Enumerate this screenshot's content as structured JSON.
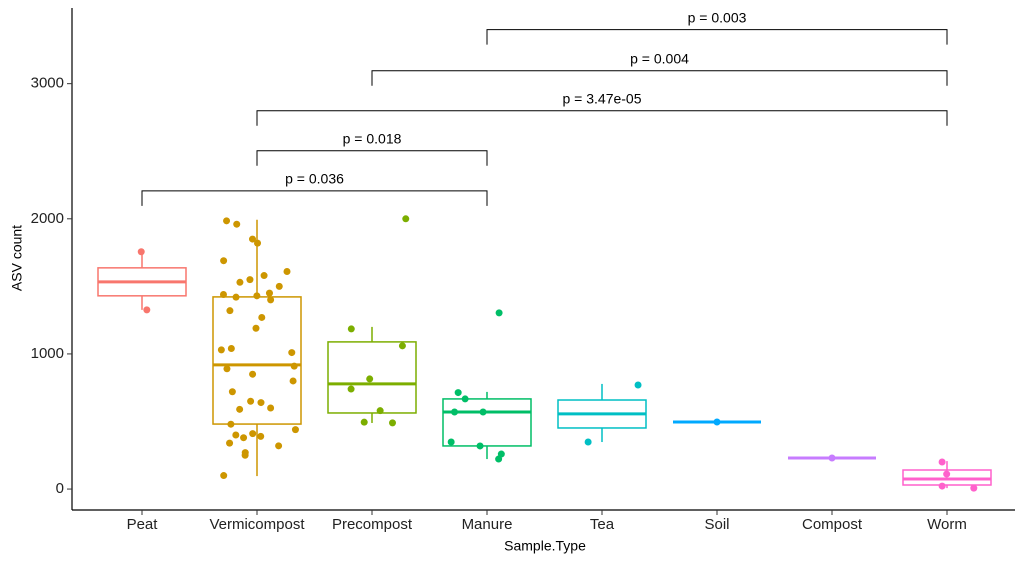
{
  "chart_data": {
    "type": "box",
    "x_label": "Sample.Type",
    "y_label": "ASV count",
    "categories": [
      "Peat",
      "Vermicompost",
      "Precompost",
      "Manure",
      "Tea",
      "Soil",
      "Compost",
      "Worm"
    ],
    "boxes": [
      {
        "color": "#F8766D",
        "whisker_low": 1326,
        "q1": 1430,
        "median": 1533,
        "q3": 1637,
        "whisker_high": 1741,
        "points": [
          1756,
          1326
        ]
      },
      {
        "color": "#CD9600",
        "whisker_low": 96,
        "q1": 481,
        "median": 919,
        "q3": 1422,
        "whisker_high": 1993,
        "points": [
          1985,
          1960,
          1850,
          1820,
          1690,
          1610,
          1580,
          1550,
          1530,
          1500,
          1450,
          1440,
          1430,
          1420,
          1400,
          1320,
          1270,
          1190,
          1040,
          1030,
          1010,
          910,
          890,
          850,
          800,
          720,
          650,
          640,
          600,
          590,
          480,
          440,
          410,
          400,
          390,
          380,
          340,
          320,
          270,
          250,
          100
        ]
      },
      {
        "color": "#7CAE00",
        "whisker_low": 489,
        "q1": 563,
        "median": 778,
        "q3": 1089,
        "whisker_high": 1200,
        "points": [
          2000,
          1185,
          1060,
          815,
          740,
          580,
          495,
          490
        ]
      },
      {
        "color": "#00BE67",
        "whisker_low": 222,
        "q1": 319,
        "median": 570,
        "q3": 667,
        "whisker_high": 719,
        "points": [
          1304,
          714,
          667,
          570,
          570,
          348,
          319,
          259,
          222
        ]
      },
      {
        "color": "#00BFC4",
        "whisker_low": 348,
        "q1": 452,
        "median": 556,
        "q3": 659,
        "whisker_high": 778,
        "points": [
          770,
          348
        ]
      },
      {
        "color": "#00A9FF",
        "whisker_low": 496,
        "q1": 496,
        "median": 496,
        "q3": 496,
        "whisker_high": 496,
        "points": [
          496
        ]
      },
      {
        "color": "#C77CFF",
        "whisker_low": 230,
        "q1": 230,
        "median": 230,
        "q3": 230,
        "whisker_high": 230,
        "points": [
          230
        ]
      },
      {
        "color": "#FF61CC",
        "whisker_low": 7,
        "q1": 30,
        "median": 74,
        "q3": 141,
        "whisker_high": 207,
        "points": [
          200,
          111,
          22,
          7
        ]
      }
    ],
    "comparisons": [
      {
        "from": "Manure",
        "to": "Worm",
        "y": 3400,
        "label": "p = 0.003"
      },
      {
        "from": "Precompost",
        "to": "Worm",
        "y": 3096,
        "label": "p = 0.004"
      },
      {
        "from": "Vermicompost",
        "to": "Worm",
        "y": 2800,
        "label": "p = 3.47e-05"
      },
      {
        "from": "Vermicompost",
        "to": "Manure",
        "y": 2504,
        "label": "p = 0.018"
      },
      {
        "from": "Peat",
        "to": "Manure",
        "y": 2207,
        "label": "p = 0.036"
      }
    ],
    "ylim": [
      -155,
      3560
    ],
    "yticks": [
      0,
      1000,
      2000,
      3000
    ]
  }
}
